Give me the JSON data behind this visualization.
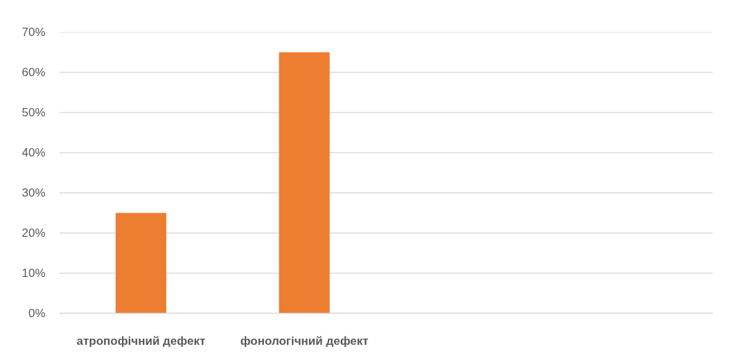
{
  "chart_data": {
    "type": "bar",
    "categories": [
      "атропофічний дефект",
      "фонологічний дефект",
      null,
      null
    ],
    "values": [
      25,
      65,
      null,
      null
    ],
    "color": "#ed7d31",
    "ylim": [
      0,
      70
    ],
    "yticks": [
      {
        "value": 0,
        "label": "0%"
      },
      {
        "value": 10,
        "label": "10%"
      },
      {
        "value": 20,
        "label": "20%"
      },
      {
        "value": 30,
        "label": "30%"
      },
      {
        "value": 40,
        "label": "40%"
      },
      {
        "value": 50,
        "label": "50%"
      },
      {
        "value": 60,
        "label": "60%"
      },
      {
        "value": 70,
        "label": "70%"
      }
    ],
    "grid": "y"
  }
}
